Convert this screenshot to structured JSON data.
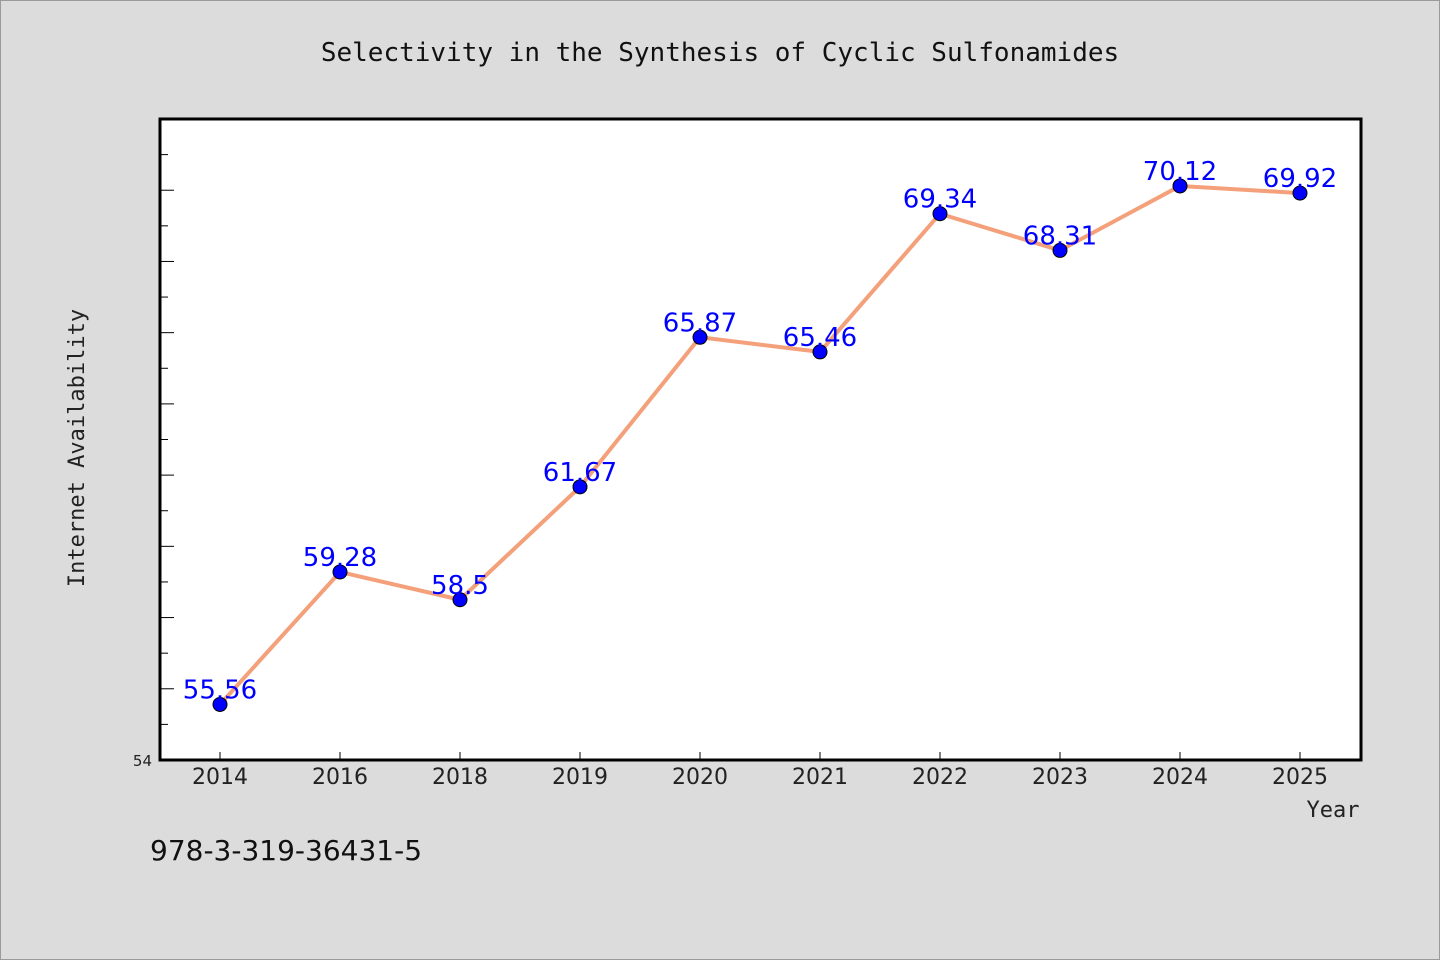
{
  "chart_data": {
    "type": "line",
    "title": "Selectivity in the Synthesis of Cyclic Sulfonamides",
    "xlabel": "Year",
    "ylabel": "Internet Availability",
    "categories": [
      "2014",
      "2016",
      "2018",
      "2019",
      "2020",
      "2021",
      "2022",
      "2023",
      "2024",
      "2025"
    ],
    "series": [
      {
        "values": [
          55.56,
          59.28,
          58.5,
          61.67,
          65.87,
          65.46,
          69.34,
          68.31,
          70.12,
          69.92
        ],
        "data_labels": [
          "55.56",
          "59.28",
          "58.5",
          "61.67",
          "65.87",
          "65.46",
          "69.34",
          "68.31",
          "70.12",
          "69.92"
        ]
      }
    ],
    "ylim": [
      54,
      72
    ],
    "ytick_labels": [
      "54"
    ],
    "grid": false,
    "colors": {
      "line": "#f4a07a",
      "marker": "#0000ff",
      "label": "#0000ff"
    }
  },
  "footnote": "978-3-319-36431-5"
}
